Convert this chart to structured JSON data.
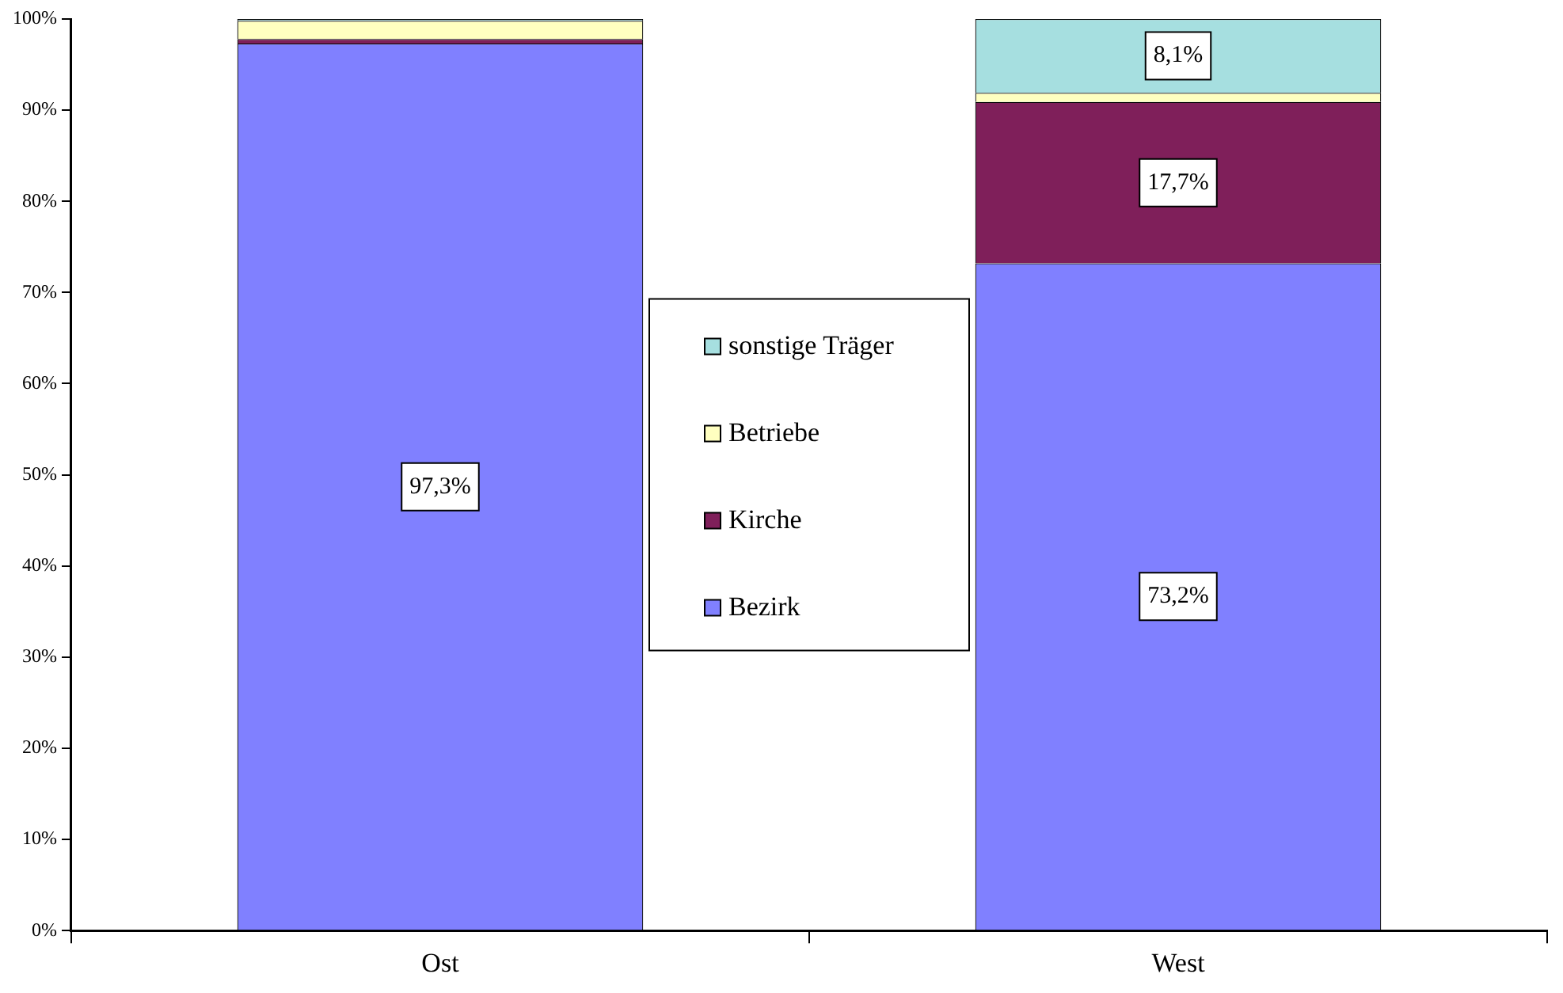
{
  "chart_data": {
    "type": "bar",
    "stacked": true,
    "categories": [
      "Ost",
      "West"
    ],
    "series": [
      {
        "name": "Bezirk",
        "color": "#8080ff",
        "values": [
          97.3,
          73.2
        ],
        "value_labels": [
          "97,3%",
          "73,2%"
        ]
      },
      {
        "name": "Kirche",
        "color": "#7f1f5a",
        "values": [
          0.5,
          17.7
        ],
        "value_labels": [
          null,
          "17,7%"
        ]
      },
      {
        "name": "Betriebe",
        "color": "#ffffc0",
        "values": [
          2.0,
          1.0
        ],
        "value_labels": [
          null,
          null
        ]
      },
      {
        "name": "sonstige Träger",
        "color": "#a6dfe0",
        "values": [
          0.2,
          8.1
        ],
        "value_labels": [
          null,
          "8,1%"
        ]
      }
    ],
    "ylim": [
      0,
      100
    ],
    "yticks": [
      {
        "value": 0,
        "label": "0%"
      },
      {
        "value": 10,
        "label": "10%"
      },
      {
        "value": 20,
        "label": "20%"
      },
      {
        "value": 30,
        "label": "30%"
      },
      {
        "value": 40,
        "label": "40%"
      },
      {
        "value": 50,
        "label": "50%"
      },
      {
        "value": 60,
        "label": "60%"
      },
      {
        "value": 70,
        "label": "70%"
      },
      {
        "value": 80,
        "label": "80%"
      },
      {
        "value": 90,
        "label": "90%"
      },
      {
        "value": 100,
        "label": "100%"
      }
    ],
    "grid": false,
    "legend": "center"
  }
}
